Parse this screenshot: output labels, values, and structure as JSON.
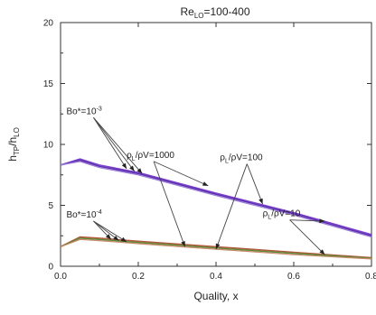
{
  "chart_data": {
    "type": "line",
    "title": "Re_LO=100-400",
    "title_parts": {
      "base": "Re",
      "sub": "LO",
      "tail": "=100-400"
    },
    "xlabel": "Quality, x",
    "ylabel": "h_TP/h_LO",
    "ylabel_parts": {
      "a": "h",
      "a_sub": "TP",
      "slash": "/h",
      "b_sub": "LO"
    },
    "xlim": [
      0.0,
      0.8
    ],
    "ylim": [
      0,
      20
    ],
    "x_ticks": [
      0.0,
      0.2,
      0.4,
      0.6,
      0.8
    ],
    "x_tick_labels": [
      "0.0",
      "0.2",
      "0.4",
      "0.6",
      "0.8"
    ],
    "y_ticks": [
      0,
      5,
      10,
      15,
      20
    ],
    "y_tick_labels": [
      "0",
      "5",
      "10",
      "15",
      "20"
    ],
    "grid": false,
    "series": [
      {
        "group": "Bo*=10^-3",
        "color": "#7b3fc9",
        "width": 1.6,
        "x": [
          0.0,
          0.05,
          0.1,
          0.2,
          0.4,
          0.6,
          0.8
        ],
        "y": [
          8.3,
          8.8,
          8.3,
          7.7,
          6.0,
          4.4,
          2.6
        ]
      },
      {
        "group": "Bo*=10^-3",
        "color": "#5a2fb0",
        "width": 1.4,
        "x": [
          0.0,
          0.05,
          0.1,
          0.2,
          0.4,
          0.6,
          0.8
        ],
        "y": [
          8.3,
          8.7,
          8.2,
          7.6,
          5.9,
          4.3,
          2.5
        ]
      },
      {
        "group": "Bo*=10^-3",
        "color": "#9a7ad8",
        "width": 1.2,
        "x": [
          0.0,
          0.05,
          0.1,
          0.2,
          0.4,
          0.6,
          0.8
        ],
        "y": [
          8.3,
          8.6,
          8.1,
          7.5,
          5.8,
          4.2,
          2.4
        ]
      },
      {
        "group": "Bo*=10^-4",
        "color": "#b25a3c",
        "width": 1.6,
        "x": [
          0.0,
          0.05,
          0.1,
          0.2,
          0.4,
          0.6,
          0.8
        ],
        "y": [
          1.6,
          2.4,
          2.3,
          2.05,
          1.6,
          1.15,
          0.7
        ]
      },
      {
        "group": "Bo*=10^-4",
        "color": "#5b8a3a",
        "width": 1.4,
        "x": [
          0.0,
          0.05,
          0.1,
          0.2,
          0.4,
          0.6,
          0.8
        ],
        "y": [
          1.6,
          2.3,
          2.2,
          1.95,
          1.5,
          1.05,
          0.65
        ]
      },
      {
        "group": "Bo*=10^-4",
        "color": "#c98a6a",
        "width": 1.2,
        "x": [
          0.0,
          0.05,
          0.1,
          0.2,
          0.4,
          0.6,
          0.8
        ],
        "y": [
          1.6,
          2.2,
          2.1,
          1.85,
          1.4,
          0.95,
          0.6
        ]
      }
    ],
    "annotations": [
      {
        "id": "bo3",
        "base": "Bo*=10",
        "sup": "-3",
        "sub": "",
        "tail": "",
        "x": 0.015,
        "y": 12.5,
        "arrows": [
          [
            0.17,
            8.0
          ],
          [
            0.19,
            7.8
          ],
          [
            0.21,
            7.6
          ]
        ]
      },
      {
        "id": "bo4",
        "base": "Bo*=10",
        "sup": "-4",
        "sub": "",
        "tail": "",
        "x": 0.015,
        "y": 4.0,
        "arrows": [
          [
            0.13,
            2.2
          ],
          [
            0.15,
            2.1
          ],
          [
            0.17,
            2.0
          ]
        ]
      },
      {
        "id": "r1000",
        "base": "ρ",
        "sup": "",
        "sub": "L",
        "tail": "/ρV=1000",
        "x": 0.17,
        "y": 8.9,
        "arrows": [
          [
            0.38,
            6.6
          ],
          [
            0.32,
            1.6
          ]
        ]
      },
      {
        "id": "r100",
        "base": "ρ",
        "sup": "",
        "sub": "L",
        "tail": "/ρV=100",
        "x": 0.41,
        "y": 8.7,
        "arrows": [
          [
            0.52,
            5.1
          ],
          [
            0.4,
            1.4
          ]
        ]
      },
      {
        "id": "r10",
        "base": "ρ",
        "sup": "",
        "sub": "L",
        "tail": "/ρV=10",
        "x": 0.52,
        "y": 4.1,
        "arrows": [
          [
            0.68,
            3.7
          ],
          [
            0.68,
            0.95
          ]
        ]
      }
    ]
  }
}
